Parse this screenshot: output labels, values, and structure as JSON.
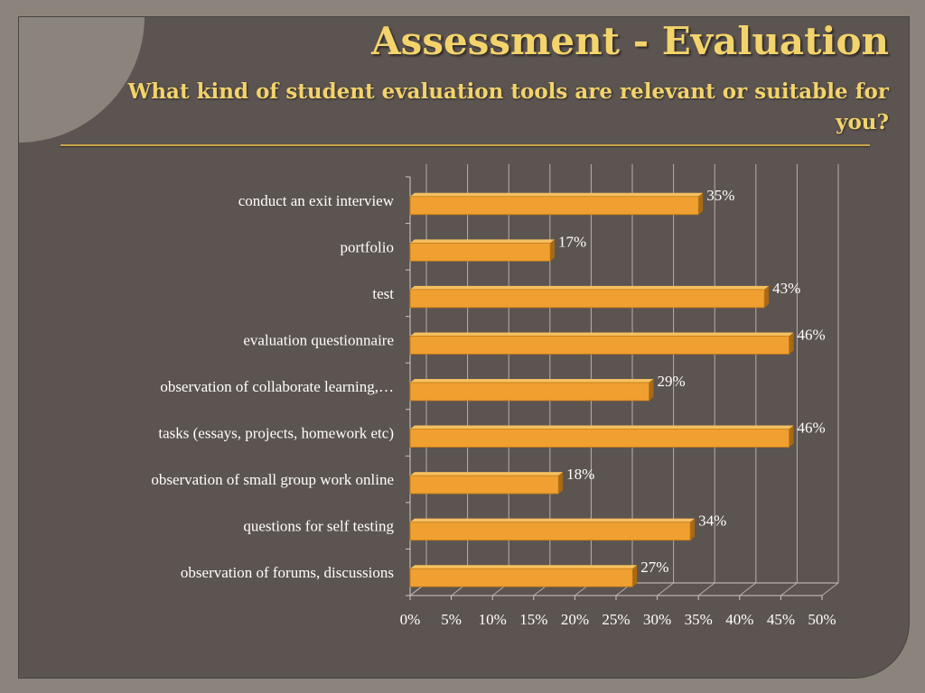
{
  "slide": {
    "title": "Assessment - Evaluation",
    "subtitle": "What kind of student evaluation tools are relevant or suitable for you?"
  },
  "colors": {
    "background": "#5c5450",
    "frame": "#8a847c",
    "title": "#f3d36b",
    "bar": "#f0a030",
    "text": "#ffffff"
  },
  "chart_data": {
    "type": "bar",
    "orientation": "horizontal",
    "style": "3d",
    "categories": [
      "conduct an exit interview",
      "portfolio",
      "test",
      "evaluation questionnaire",
      "observation of collaborate learning,…",
      "tasks (essays, projects, homework etc)",
      "observation of small group work online",
      "questions for self testing",
      "observation of forums, discussions"
    ],
    "values": [
      0.35,
      0.17,
      0.43,
      0.46,
      0.29,
      0.46,
      0.18,
      0.34,
      0.27
    ],
    "data_labels": [
      "35%",
      "17%",
      "43%",
      "46%",
      "29%",
      "46%",
      "18%",
      "34%",
      "27%"
    ],
    "xlim": [
      0,
      0.5
    ],
    "xticks": [
      "0%",
      "5%",
      "10%",
      "15%",
      "20%",
      "25%",
      "30%",
      "35%",
      "40%",
      "45%",
      "50%"
    ],
    "grid": true,
    "legend": "none"
  }
}
